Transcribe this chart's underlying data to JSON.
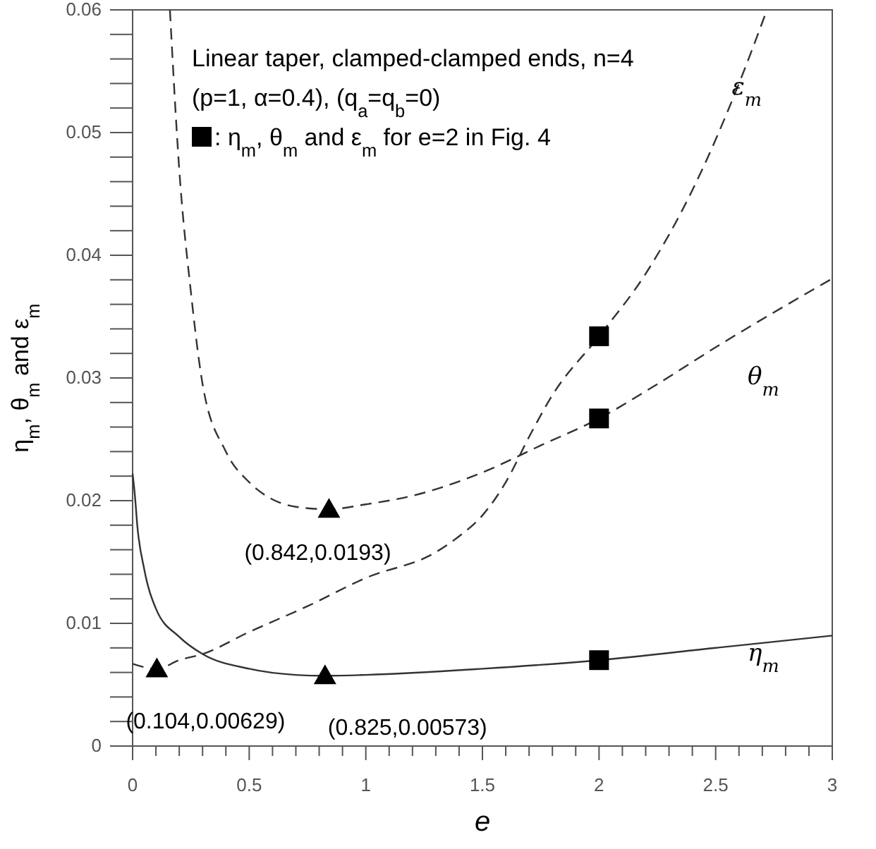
{
  "chart_data": {
    "type": "line",
    "xlabel": "e",
    "ylabel": "η$_{m}$, θ$_{m}$ and ε$_{m}$",
    "xlim": [
      0,
      3
    ],
    "ylim": [
      0,
      0.06
    ],
    "xticks": [
      0,
      {
        "value": 0.1,
        "label": null
      },
      {
        "value": 0.2,
        "label": null
      },
      {
        "value": 0.3,
        "label": null
      },
      {
        "value": 0.4,
        "label": null
      },
      0.5,
      {
        "value": 0.6,
        "label": null
      },
      {
        "value": 0.7,
        "label": null
      },
      {
        "value": 0.8,
        "label": null
      },
      {
        "value": 0.9,
        "label": null
      },
      1,
      {
        "value": 1.1,
        "label": null
      },
      {
        "value": 1.2,
        "label": null
      },
      {
        "value": 1.3,
        "label": null
      },
      {
        "value": 1.4,
        "label": null
      },
      1.5,
      {
        "value": 1.6,
        "label": null
      },
      {
        "value": 1.7,
        "label": null
      },
      {
        "value": 1.8,
        "label": null
      },
      {
        "value": 1.9,
        "label": null
      },
      2,
      {
        "value": 2.1,
        "label": null
      },
      {
        "value": 2.2,
        "label": null
      },
      {
        "value": 2.3,
        "label": null
      },
      {
        "value": 2.4,
        "label": null
      },
      2.5,
      {
        "value": 2.6,
        "label": null
      },
      {
        "value": 2.7,
        "label": null
      },
      {
        "value": 2.8,
        "label": null
      },
      {
        "value": 2.9,
        "label": null
      },
      3
    ],
    "yticks": [
      0,
      {
        "value": 0.002,
        "label": null
      },
      {
        "value": 0.004,
        "label": null
      },
      {
        "value": 0.006,
        "label": null
      },
      {
        "value": 0.008,
        "label": null
      },
      0.01,
      {
        "value": 0.012,
        "label": null
      },
      {
        "value": 0.014,
        "label": null
      },
      {
        "value": 0.016,
        "label": null
      },
      {
        "value": 0.018,
        "label": null
      },
      0.02,
      {
        "value": 0.022,
        "label": null
      },
      {
        "value": 0.024,
        "label": null
      },
      {
        "value": 0.026,
        "label": null
      },
      {
        "value": 0.028,
        "label": null
      },
      0.03,
      {
        "value": 0.032,
        "label": null
      },
      {
        "value": 0.034,
        "label": null
      },
      {
        "value": 0.036,
        "label": null
      },
      {
        "value": 0.038,
        "label": null
      },
      0.04,
      {
        "value": 0.042,
        "label": null
      },
      {
        "value": 0.044,
        "label": null
      },
      {
        "value": 0.046,
        "label": null
      },
      {
        "value": 0.048,
        "label": null
      },
      0.05,
      {
        "value": 0.052,
        "label": null
      },
      {
        "value": 0.054,
        "label": null
      },
      {
        "value": 0.056,
        "label": null
      },
      {
        "value": 0.058,
        "label": null
      },
      0.06
    ],
    "grid": false,
    "legend": "top left",
    "annotations": [
      "Linear taper, clamped-clamped ends, n=4",
      "(p=1, α=0.4), (q$_{a}$=q$_{b}$=0)",
      {
        "text": "(0.104,0.00629)",
        "x": 0.104,
        "y": 0.00629
      },
      {
        "text": "(0.842,0.0193)",
        "x": 0.842,
        "y": 0.0193
      },
      {
        "text": "(0.825,0.00573)",
        "x": 0.825,
        "y": 0.00573
      }
    ],
    "series": [
      {
        "name": "η$_{m}$",
        "color": "#333333",
        "line_style": "solid",
        "x": [
          0,
          0.01,
          0.02,
          0.05,
          0.1,
          0.2,
          0.3,
          0.5,
          0.7,
          0.825,
          1,
          1.5,
          2,
          2.5,
          3
        ],
        "values": [
          0.0222,
          0.0204,
          0.018,
          0.0144,
          0.0112,
          0.0089,
          0.0075,
          0.0063,
          0.0058,
          0.00573,
          0.0058,
          0.0063,
          0.007,
          0.008,
          0.009
        ]
      },
      {
        "name": "θ$_{m}$",
        "color": "#333333",
        "line_style": "dashed",
        "x": [
          0.16,
          0.2,
          0.25,
          0.3,
          0.4,
          0.5,
          0.6,
          0.7,
          0.842,
          1,
          1.2,
          1.5,
          1.75,
          2,
          2.25,
          2.5,
          3
        ],
        "values": [
          0.06,
          0.047,
          0.037,
          0.0295,
          0.024,
          0.0215,
          0.0201,
          0.0195,
          0.0193,
          0.0197,
          0.0204,
          0.0223,
          0.0245,
          0.0267,
          0.0295,
          0.0325,
          0.0381
        ]
      },
      {
        "name": "ε$_{m}$",
        "color": "#333333",
        "line_style": "dashed",
        "x": [
          0,
          0.104,
          0.2,
          0.3,
          0.5,
          0.75,
          1,
          1.3,
          1.4,
          1.5,
          1.6,
          1.7,
          1.8,
          2,
          2.2,
          2.4,
          2.6,
          2.72
        ],
        "values": [
          0.0067,
          0.00629,
          0.007,
          0.0075,
          0.0093,
          0.0114,
          0.0137,
          0.0158,
          0.0171,
          0.0188,
          0.0215,
          0.0252,
          0.0286,
          0.0334,
          0.0385,
          0.0453,
          0.054,
          0.06
        ]
      },
      {
        "type": "scatter",
        "marker": "triangle",
        "color": "#000000",
        "x": [
          0.104,
          0.842,
          0.825
        ],
        "values": [
          0.00629,
          0.0193,
          0.00573
        ]
      },
      {
        "type": "scatter",
        "marker": "square",
        "color": "#000000",
        "name": ":  η$_{m}$, θ$_{m}$ and ε$_{m}$ for e=2 in Fig. 4",
        "x": [
          2,
          2,
          2
        ],
        "values": [
          0.007,
          0.0267,
          0.0334
        ]
      }
    ]
  }
}
